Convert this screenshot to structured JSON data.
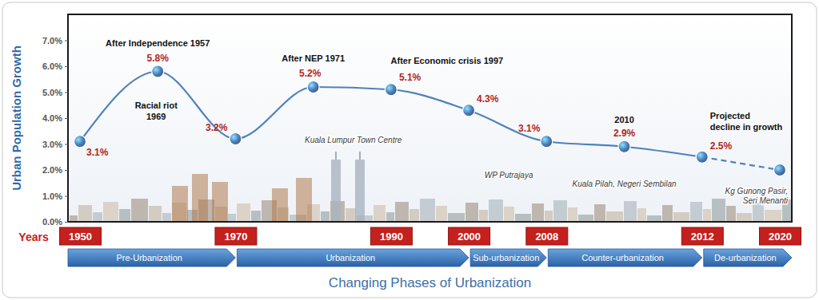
{
  "chart_data": {
    "type": "line",
    "ylabel": "Urban Population Growth",
    "xlabel": "Changing Phases of Urbanization",
    "xtick_caption": "Years",
    "categories": [
      "1950",
      null,
      "1970",
      null,
      "1990",
      "2000",
      "2008",
      null,
      "2012",
      "2020"
    ],
    "series": [
      {
        "color": "#4f81bd",
        "marker": "circle",
        "line_style": "solid",
        "values": [
          3.1,
          5.8,
          3.2,
          5.2,
          5.1,
          4.3,
          3.1,
          2.9,
          2.5,
          null
        ],
        "value_labels": [
          "3.1%",
          "5.8%",
          "3.2%",
          "5.2%",
          "5.1%",
          "4.3%",
          "3.1%",
          "2.9%",
          "2.5%",
          null
        ]
      },
      {
        "color": "#4f81bd",
        "marker": "circle",
        "line_style": "dashed",
        "values": [
          null,
          null,
          null,
          null,
          null,
          null,
          null,
          null,
          2.5,
          2.0
        ],
        "value_labels": [
          null,
          null,
          null,
          null,
          null,
          null,
          null,
          null,
          null,
          null
        ]
      }
    ],
    "ylim": [
      0,
      8
    ],
    "yticks": [
      {
        "value": 0,
        "label": "0.0%"
      },
      {
        "value": 1,
        "label": "1.0%"
      },
      {
        "value": 2,
        "label": "2.0%"
      },
      {
        "value": 3,
        "label": "3.0%"
      },
      {
        "value": 4,
        "label": "4.0%"
      },
      {
        "value": 5,
        "label": "5.0%"
      },
      {
        "value": 6,
        "label": "6.0%"
      },
      {
        "value": 7,
        "label": "7.0%"
      }
    ],
    "grid": false,
    "data_labels": true,
    "annotations": [
      [
        "After Independence 1957"
      ],
      [
        "Racial riot",
        "1969"
      ],
      [
        "After NEP 1971"
      ],
      [
        "After Economic crisis 1997"
      ],
      [
        "2010"
      ],
      [
        "Projected",
        "decline in growth"
      ],
      [
        "Kuala Lumpur Town Centre"
      ],
      [
        "WP Putrajaya"
      ],
      [
        "Kuala Pilah, Negeri Sembilan"
      ],
      [
        "Kg Gunong Pasir,",
        "Seri Menanti"
      ]
    ],
    "phases": [
      {
        "name": "Pre-Urbanization",
        "from": "1950",
        "to": "1970"
      },
      {
        "name": "Urbanization",
        "from": "1970",
        "to": "2000"
      },
      {
        "name": "Sub-urbanization",
        "from": "2000",
        "to": "2008"
      },
      {
        "name": "Counter-urbanization",
        "from": "2008",
        "to": "2012"
      },
      {
        "name": "De-urbanization",
        "from": "2012",
        "to": "2020"
      }
    ]
  }
}
